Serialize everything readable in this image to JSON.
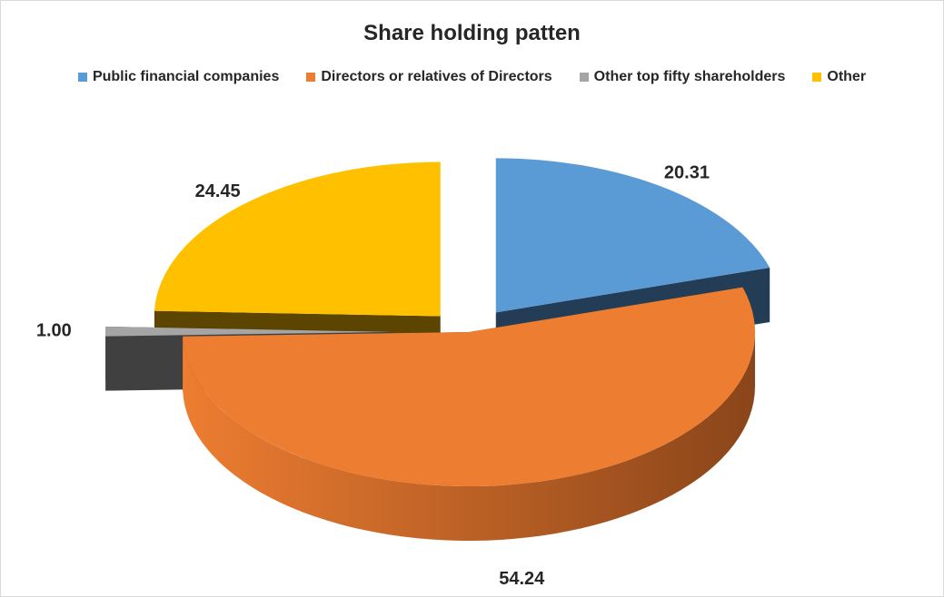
{
  "chart_data": {
    "type": "pie",
    "title": "Share holding patten",
    "legend_position": "top",
    "categories": [
      "Public financial companies",
      "Directors or relatives of Directors",
      "Other top fifty shareholders",
      "Other"
    ],
    "values": [
      20.31,
      54.24,
      1.0,
      24.45
    ],
    "value_labels": [
      "20.31",
      "54.24",
      "1.00",
      "24.45"
    ],
    "colors": [
      "#5b9bd5",
      "#ed7d31",
      "#a5a5a5",
      "#ffc000"
    ],
    "side_colors": [
      "#243d57",
      "#8a451a",
      "#404040",
      "#5c4500"
    ]
  }
}
